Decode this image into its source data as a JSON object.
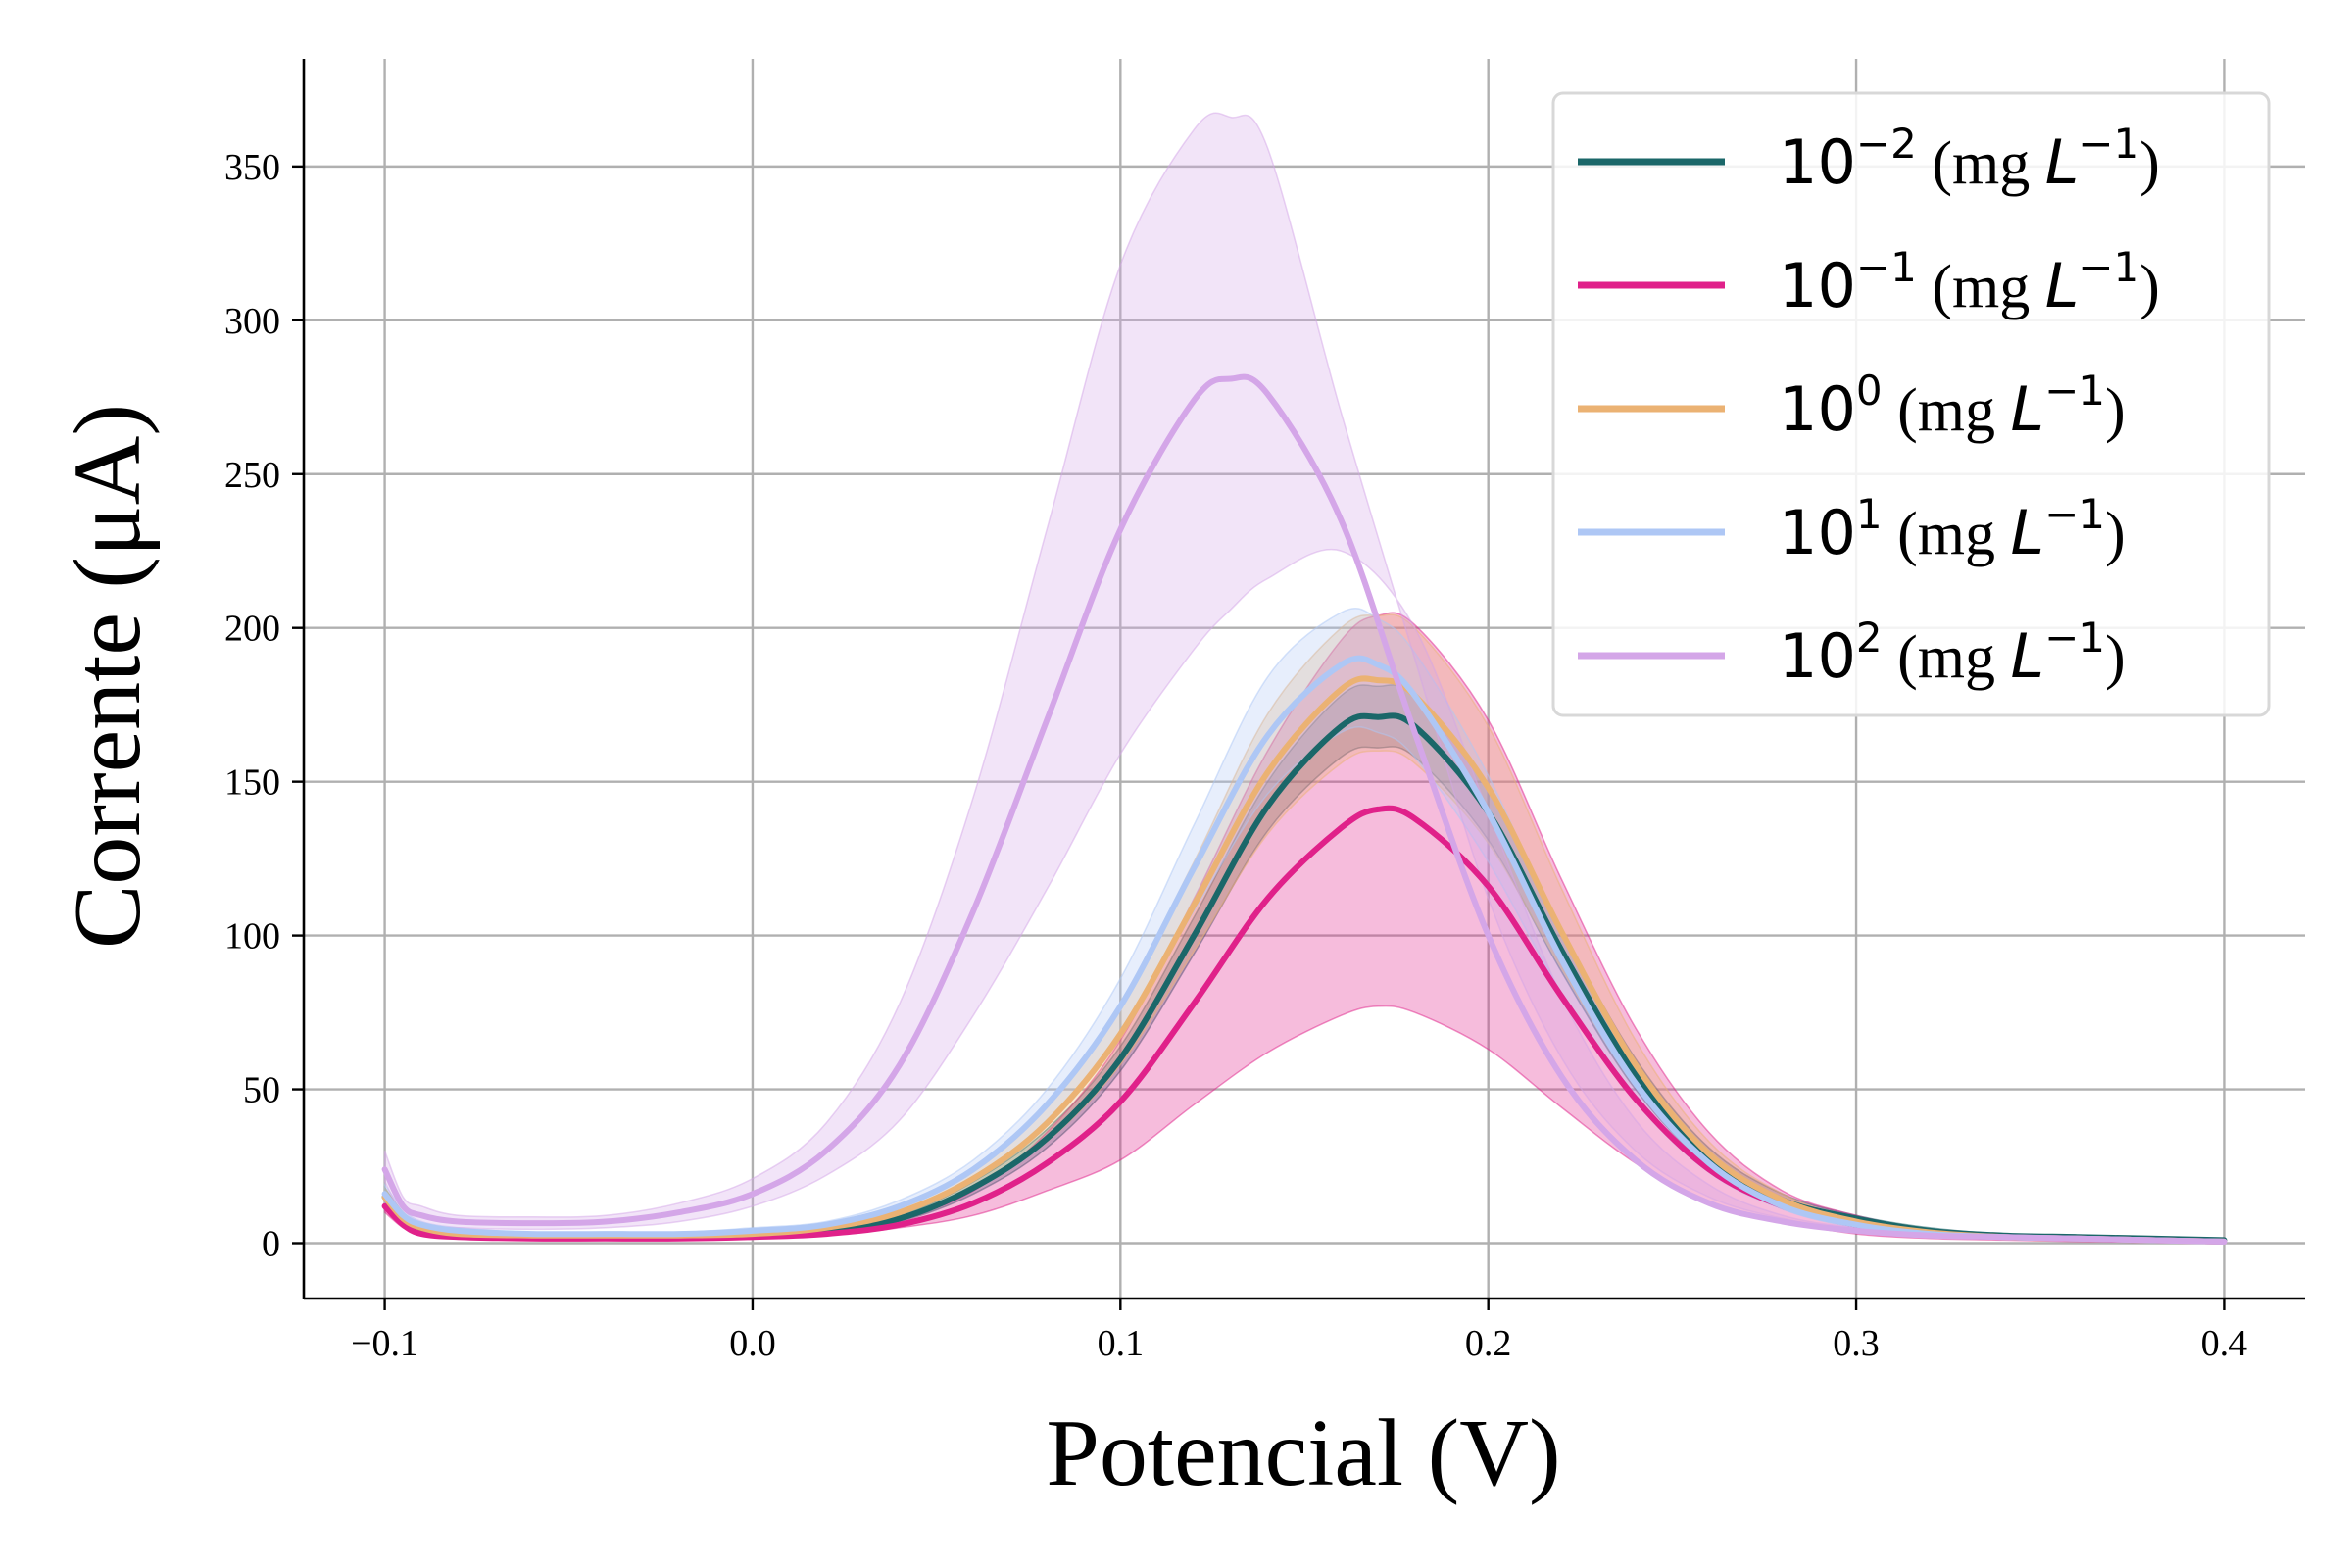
{
  "chart_data": {
    "type": "line",
    "title": "",
    "xlabel": "Potencial (V)",
    "ylabel": "Corrente (μA)",
    "xlim": [
      -0.122,
      0.422
    ],
    "ylim": [
      -18,
      385
    ],
    "xticks": [
      -0.1,
      0.0,
      0.1,
      0.2,
      0.3,
      0.4
    ],
    "xtick_labels": [
      "−0.1",
      "0.0",
      "0.1",
      "0.2",
      "0.3",
      "0.4"
    ],
    "yticks": [
      0,
      50,
      100,
      150,
      200,
      250,
      300,
      350
    ],
    "ytick_labels": [
      "0",
      "50",
      "100",
      "150",
      "200",
      "250",
      "300",
      "350"
    ],
    "grid": true,
    "legend_position": "top-right",
    "series": [
      {
        "name": "10⁻² (mg L⁻¹)",
        "legend": {
          "base": "10",
          "exp": "−2",
          "unit": " (mg ",
          "var": "L",
          "unit_exp": "−1",
          "close": ")"
        },
        "color": "#1b6769",
        "x": [
          -0.1,
          -0.095,
          -0.09,
          -0.08,
          -0.06,
          -0.04,
          -0.02,
          0.0,
          0.02,
          0.04,
          0.06,
          0.08,
          0.1,
          0.12,
          0.14,
          0.16,
          0.17,
          0.18,
          0.2,
          0.22,
          0.24,
          0.26,
          0.28,
          0.3,
          0.32,
          0.34,
          0.36,
          0.38,
          0.4
        ],
        "y": [
          15,
          8,
          5,
          3,
          2,
          2,
          2,
          2.5,
          4,
          8,
          18,
          34,
          60,
          100,
          142,
          168,
          171,
          168,
          140,
          95,
          55,
          28,
          14,
          8,
          4,
          2.5,
          2,
          1.5,
          1
        ],
        "band_lower": [
          12,
          6,
          4,
          2,
          1.5,
          1.5,
          1.5,
          2,
          3,
          7,
          16,
          31,
          56,
          94,
          134,
          158,
          161,
          158,
          131,
          88,
          50,
          25,
          12,
          7,
          3.5,
          2,
          1.5,
          1,
          0.5
        ],
        "band_upper": [
          18,
          10,
          6,
          4,
          3,
          3,
          3,
          3.5,
          5,
          9,
          20,
          37,
          64,
          106,
          150,
          178,
          181,
          178,
          149,
          102,
          60,
          31,
          16,
          9,
          5,
          3,
          2.5,
          2,
          1.5
        ]
      },
      {
        "name": "10⁻¹ (mg L⁻¹)",
        "legend": {
          "base": "10",
          "exp": "−1",
          "unit": " (mg ",
          "var": "L",
          "unit_exp": "−1",
          "close": ")"
        },
        "color": "#e0218a",
        "x": [
          -0.1,
          -0.095,
          -0.09,
          -0.08,
          -0.06,
          -0.04,
          -0.02,
          0.0,
          0.02,
          0.04,
          0.06,
          0.08,
          0.1,
          0.12,
          0.14,
          0.16,
          0.17,
          0.18,
          0.2,
          0.22,
          0.24,
          0.26,
          0.28,
          0.3,
          0.32,
          0.34,
          0.36,
          0.38,
          0.4
        ],
        "y": [
          12,
          6,
          3,
          2,
          1.5,
          1.5,
          1.5,
          2,
          3,
          6,
          13,
          26,
          46,
          78,
          112,
          135,
          141,
          138,
          116,
          80,
          47,
          24,
          12,
          6,
          3,
          2,
          1.5,
          1,
          0.5
        ],
        "band_lower": [
          10,
          5,
          2.5,
          1.5,
          1,
          1,
          1,
          1.5,
          2.5,
          5,
          9,
          17,
          27,
          45,
          62,
          74,
          77,
          75,
          63,
          44,
          26,
          13,
          7,
          3,
          1.5,
          1,
          0.5,
          0.3,
          0.2
        ],
        "band_upper": [
          14,
          7,
          4,
          2.5,
          2,
          2,
          2,
          3,
          5,
          8,
          17,
          36,
          66,
          112,
          160,
          196,
          204,
          201,
          170,
          118,
          70,
          36,
          17,
          9,
          4.5,
          3,
          2,
          1.5,
          1
        ]
      },
      {
        "name": "10⁰ (mg L⁻¹)",
        "legend": {
          "base": "10",
          "exp": "0",
          "unit": " (mg ",
          "var": "L",
          "unit_exp": "−1",
          "close": ")"
        },
        "color": "#ebb273",
        "x": [
          -0.1,
          -0.095,
          -0.09,
          -0.08,
          -0.06,
          -0.04,
          -0.02,
          0.0,
          0.02,
          0.04,
          0.06,
          0.08,
          0.1,
          0.12,
          0.14,
          0.16,
          0.17,
          0.18,
          0.2,
          0.22,
          0.24,
          0.26,
          0.28,
          0.3,
          0.32,
          0.34,
          0.36,
          0.38,
          0.4
        ],
        "y": [
          15,
          8,
          5,
          3,
          2.5,
          2.5,
          2.5,
          3,
          5,
          10,
          21,
          39,
          68,
          110,
          153,
          180,
          183,
          178,
          148,
          101,
          58,
          29,
          14,
          7,
          3.5,
          2,
          1.5,
          1,
          0.5
        ],
        "band_lower": [
          12,
          6,
          4,
          2,
          2,
          2,
          2,
          2.5,
          4,
          8,
          18,
          33,
          58,
          95,
          133,
          156,
          160,
          156,
          130,
          89,
          51,
          25,
          12,
          6,
          3,
          1.5,
          1,
          0.5,
          0.3
        ],
        "band_upper": [
          18,
          10,
          6,
          4,
          3,
          3,
          3,
          3.5,
          6,
          12,
          24,
          45,
          78,
          124,
          172,
          200,
          204,
          200,
          168,
          115,
          66,
          33,
          16,
          8,
          4,
          2.5,
          2,
          1.5,
          1
        ]
      },
      {
        "name": "10¹ (mg L⁻¹)",
        "legend": {
          "base": "10",
          "exp": "1",
          "unit": " (mg ",
          "var": "L",
          "unit_exp": "−1",
          "close": ")"
        },
        "color": "#aec7f5",
        "x": [
          -0.1,
          -0.095,
          -0.09,
          -0.08,
          -0.06,
          -0.04,
          -0.02,
          0.0,
          0.02,
          0.04,
          0.06,
          0.08,
          0.1,
          0.12,
          0.14,
          0.16,
          0.17,
          0.18,
          0.2,
          0.22,
          0.24,
          0.26,
          0.28,
          0.3,
          0.32,
          0.34,
          0.36,
          0.38,
          0.4
        ],
        "y": [
          16,
          9,
          6,
          4,
          3,
          3,
          3,
          4,
          6,
          12,
          24,
          45,
          77,
          122,
          165,
          188,
          188,
          178,
          140,
          92,
          52,
          26,
          12,
          6,
          3,
          2,
          1.5,
          1,
          0.5
        ],
        "band_lower": [
          13,
          7,
          5,
          3,
          2.5,
          2.5,
          2.5,
          3,
          5,
          10,
          21,
          40,
          68,
          108,
          146,
          166,
          166,
          158,
          124,
          81,
          46,
          23,
          11,
          5,
          2.5,
          1.5,
          1,
          0.5,
          0.3
        ],
        "band_upper": [
          19,
          11,
          7,
          5,
          3.5,
          3.5,
          3.5,
          5,
          7,
          14,
          27,
          50,
          86,
          136,
          184,
          205,
          203,
          192,
          152,
          100,
          57,
          29,
          14,
          7,
          3.5,
          2.5,
          2,
          1.5,
          1
        ]
      },
      {
        "name": "10² (mg L⁻¹)",
        "legend": {
          "base": "10",
          "exp": "2",
          "unit": " (mg ",
          "var": "L",
          "unit_exp": "−1",
          "close": ")"
        },
        "color": "#d4a6e8",
        "x": [
          -0.1,
          -0.095,
          -0.09,
          -0.08,
          -0.06,
          -0.04,
          -0.02,
          0.0,
          0.02,
          0.04,
          0.06,
          0.08,
          0.1,
          0.12,
          0.13,
          0.14,
          0.16,
          0.18,
          0.2,
          0.22,
          0.24,
          0.26,
          0.28,
          0.3,
          0.32,
          0.34,
          0.36,
          0.38,
          0.4
        ],
        "y": [
          24,
          12,
          9,
          7,
          6.5,
          7,
          10,
          16,
          30,
          58,
          108,
          170,
          232,
          274,
          281,
          276,
          235,
          166,
          100,
          54,
          27,
          13,
          7,
          4,
          2.5,
          2,
          1.5,
          1,
          0.5
        ],
        "band_lower": [
          20,
          9,
          6,
          5,
          4.5,
          5,
          7,
          12,
          22,
          40,
          74,
          115,
          159,
          193,
          206,
          216,
          225,
          200,
          140,
          80,
          40,
          19,
          9,
          5,
          3,
          2,
          1.5,
          1,
          0.5
        ],
        "band_upper": [
          30,
          15,
          12,
          9,
          8.5,
          9,
          13,
          21,
          39,
          78,
          145,
          232,
          318,
          362,
          366,
          356,
          270,
          190,
          112,
          60,
          30,
          15,
          8,
          4.5,
          3,
          2,
          1.5,
          1,
          0.5
        ]
      }
    ]
  }
}
